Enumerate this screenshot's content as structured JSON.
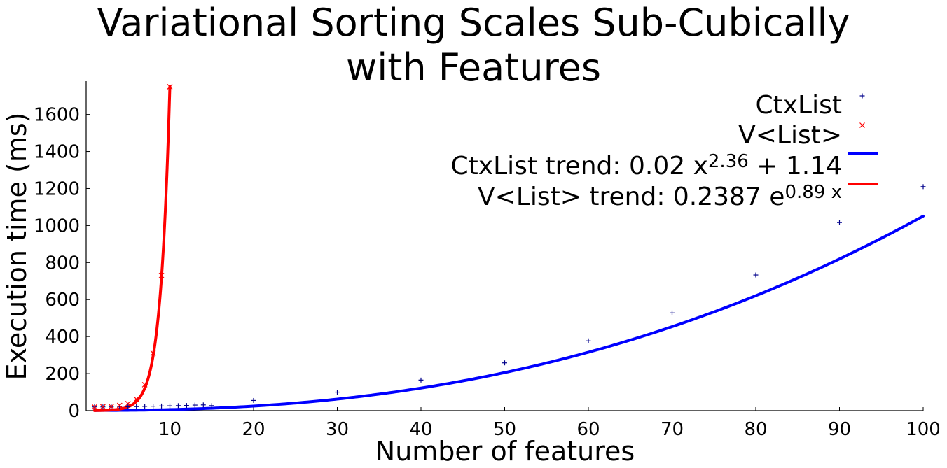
{
  "chart_data": {
    "type": "scatter",
    "title_lines": [
      "Variational Sorting Scales Sub-Cubically",
      "with Features"
    ],
    "xlabel": "Number of features",
    "ylabel": "Execution time (ms)",
    "xlim": [
      0,
      100
    ],
    "ylim": [
      0,
      1780
    ],
    "xticks": [
      10,
      20,
      30,
      40,
      50,
      60,
      70,
      80,
      90,
      100
    ],
    "yticks": [
      0,
      200,
      400,
      600,
      800,
      1000,
      1200,
      1400,
      1600
    ],
    "grid": false,
    "legend_position": "top-right",
    "series": [
      {
        "name": "CtxList",
        "kind": "points",
        "marker": "+",
        "color": "#00008b",
        "points": [
          [
            1,
            20
          ],
          [
            2,
            20
          ],
          [
            3,
            20
          ],
          [
            4,
            20
          ],
          [
            5,
            21
          ],
          [
            6,
            22
          ],
          [
            7,
            23
          ],
          [
            8,
            24
          ],
          [
            9,
            25
          ],
          [
            10,
            26
          ],
          [
            11,
            27
          ],
          [
            12,
            28
          ],
          [
            13,
            30
          ],
          [
            14,
            31
          ],
          [
            15,
            27
          ],
          [
            20,
            55
          ],
          [
            30,
            100
          ],
          [
            40,
            165
          ],
          [
            50,
            258
          ],
          [
            60,
            377
          ],
          [
            70,
            528
          ],
          [
            80,
            733
          ],
          [
            90,
            1016
          ],
          [
            100,
            1210
          ]
        ]
      },
      {
        "name": "V<List>",
        "kind": "points",
        "marker": "x",
        "color": "#ff0000",
        "points": [
          [
            1,
            20
          ],
          [
            2,
            21
          ],
          [
            3,
            22
          ],
          [
            4,
            28
          ],
          [
            5,
            38
          ],
          [
            6,
            62
          ],
          [
            7,
            140
          ],
          [
            8,
            310
          ],
          [
            9,
            730
          ],
          [
            10,
            1750
          ]
        ]
      },
      {
        "name": "CtxList trend",
        "kind": "line",
        "color": "#0000ff",
        "x_range": [
          1,
          100
        ],
        "formula": "0.02 * x^2.36 + 1.14"
      },
      {
        "name": "V<List> trend",
        "kind": "line",
        "color": "#ff0000",
        "x_range": [
          1,
          10
        ],
        "formula": "0.2387 * e^(0.89 * x)"
      }
    ],
    "trend_models": {
      "ctxlist": {
        "a": 0.02,
        "b": 2.36,
        "c": 1.14
      },
      "vlist": {
        "a": 0.2387,
        "k": 0.89
      }
    }
  },
  "legend": {
    "ctxlist_label": "CtxList",
    "vlist_label": "V<List>",
    "ctx_trend_prefix": "CtxList trend: 0.02 x",
    "ctx_trend_exp": "2.36",
    "ctx_trend_suffix": " + 1.14",
    "v_trend_prefix": "V<List> trend: 0.2387 e",
    "v_trend_exp": "0.89 x"
  }
}
